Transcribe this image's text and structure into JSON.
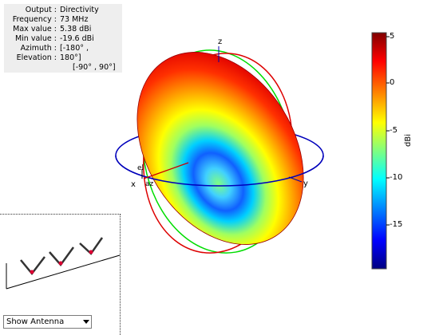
{
  "info": {
    "rows": [
      {
        "key": "Output :",
        "value": "Directivity"
      },
      {
        "key": "Frequency :",
        "value": "73 MHz"
      },
      {
        "key": "Max value :",
        "value": "5.38 dBi"
      },
      {
        "key": "Min value :",
        "value": "-19.6 dBi"
      },
      {
        "key": "Azimuth :",
        "value": "[-180° ,"
      },
      {
        "key": "Elevation :",
        "value": "180°]"
      },
      {
        "key": "",
        "value": "[-90° , 90°]"
      }
    ]
  },
  "axes": {
    "z": "z",
    "x": "x",
    "y": "y",
    "el": "el",
    "az": "az"
  },
  "colorbar": {
    "ticks": [
      "5",
      "0",
      "-5",
      "-10",
      "-15"
    ],
    "unit": "dBi",
    "colors": [
      "#800000",
      "#ff0000",
      "#ffff00",
      "#00ffff",
      "#0000ff",
      "#000080"
    ]
  },
  "antenna_panel": {
    "dropdown_value": "Show Antenna"
  }
}
